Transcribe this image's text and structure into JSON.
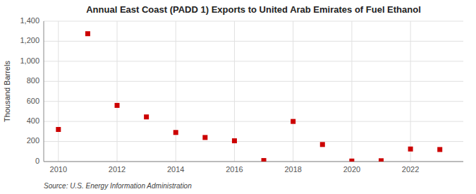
{
  "chart_data": {
    "type": "scatter",
    "title": "Annual East Coast (PADD 1) Exports to United Arab Emirates of Fuel Ethanol",
    "ylabel": "Thousand Barrels",
    "source": "Source: U.S. Energy Information Administration",
    "x": [
      2010,
      2011,
      2012,
      2013,
      2014,
      2015,
      2016,
      2017,
      2018,
      2019,
      2020,
      2021,
      2022,
      2023
    ],
    "values": [
      320,
      1275,
      560,
      445,
      290,
      240,
      207,
      10,
      400,
      170,
      5,
      8,
      125,
      120
    ],
    "color": "#cc0000",
    "marker": "square",
    "xlim": [
      2009.5,
      2023.8
    ],
    "xticks": [
      2010,
      2012,
      2014,
      2016,
      2018,
      2020,
      2022
    ],
    "ylim": [
      0,
      1400
    ],
    "yticks": [
      0,
      200,
      400,
      600,
      800,
      {
        "value": 1000,
        "label": "1,000"
      },
      {
        "value": 1200,
        "label": "1,200"
      },
      {
        "value": 1400,
        "label": "1,400"
      }
    ],
    "grid": true
  }
}
